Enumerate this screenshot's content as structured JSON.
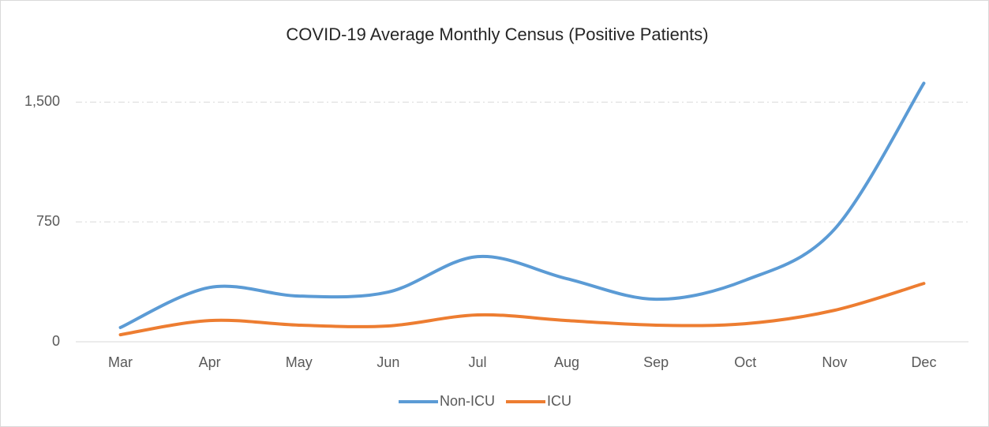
{
  "chart_data": {
    "type": "line",
    "title": "COVID-19 Average Monthly Census (Positive Patients)",
    "categories": [
      "Mar",
      "Apr",
      "May",
      "Jun",
      "Jul",
      "Aug",
      "Sep",
      "Oct",
      "Nov",
      "Dec"
    ],
    "series": [
      {
        "name": "Non-ICU",
        "color": "#5b9bd5",
        "values": [
          89,
          340,
          286,
          311,
          533,
          395,
          266,
          385,
          705,
          1618
        ]
      },
      {
        "name": "ICU",
        "color": "#ed7d31",
        "values": [
          44,
          133,
          104,
          99,
          168,
          133,
          104,
          113,
          197,
          365
        ]
      }
    ],
    "ylim": [
      0,
      1650
    ],
    "yticks": [
      0,
      750,
      {
        "value": 1500,
        "label": "1,500"
      }
    ],
    "grid": true,
    "smooth": true,
    "legend": "bottom"
  }
}
